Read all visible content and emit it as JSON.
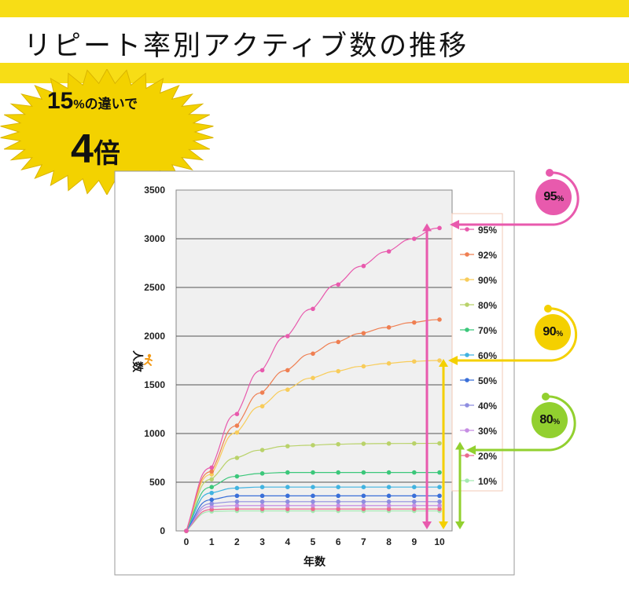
{
  "title": "リピート率別アクティブ数の推移",
  "callout": {
    "line1_number": "15",
    "line1_percent": "%",
    "line1_text": "の違いで",
    "line2_number": "4",
    "line2_text": "倍"
  },
  "badges": [
    {
      "value": "95",
      "unit": "%",
      "color": "#e85aad"
    },
    {
      "value": "90",
      "unit": "%",
      "color": "#f4d000"
    },
    {
      "value": "80",
      "unit": "%",
      "color": "#92d02f"
    }
  ],
  "chart_data": {
    "type": "line",
    "title": "",
    "xlabel": "年数",
    "ylabel": "人数",
    "x": [
      0,
      1,
      2,
      3,
      4,
      5,
      6,
      7,
      8,
      9,
      10
    ],
    "xlim": [
      0,
      10
    ],
    "ylim": [
      0,
      3500
    ],
    "yticks": [
      0,
      500,
      1000,
      1500,
      2000,
      2500,
      3000,
      3500
    ],
    "grid": true,
    "legend_position": "right",
    "series": [
      {
        "name": "95%",
        "color": "#e85aad",
        "values": [
          0,
          650,
          1200,
          1650,
          2000,
          2280,
          2530,
          2720,
          2870,
          3000,
          3110
        ]
      },
      {
        "name": "92%",
        "color": "#ef7f52",
        "values": [
          0,
          610,
          1080,
          1420,
          1650,
          1820,
          1940,
          2030,
          2090,
          2140,
          2170
        ]
      },
      {
        "name": "90%",
        "color": "#f8cc5a",
        "values": [
          0,
          580,
          1010,
          1280,
          1450,
          1570,
          1640,
          1690,
          1720,
          1740,
          1750
        ]
      },
      {
        "name": "80%",
        "color": "#b9d26a",
        "values": [
          0,
          530,
          750,
          830,
          870,
          880,
          890,
          895,
          897,
          898,
          899
        ]
      },
      {
        "name": "70%",
        "color": "#3bc77a",
        "values": [
          0,
          450,
          560,
          590,
          600,
          600,
          600,
          600,
          600,
          600,
          600
        ]
      },
      {
        "name": "60%",
        "color": "#41b3e0",
        "values": [
          0,
          390,
          440,
          450,
          450,
          450,
          450,
          450,
          450,
          450,
          450
        ]
      },
      {
        "name": "50%",
        "color": "#3a6fd8",
        "values": [
          0,
          320,
          360,
          360,
          360,
          360,
          360,
          360,
          360,
          360,
          360
        ]
      },
      {
        "name": "40%",
        "color": "#8f8ee0",
        "values": [
          0,
          280,
          300,
          300,
          300,
          300,
          300,
          300,
          300,
          300,
          300
        ]
      },
      {
        "name": "30%",
        "color": "#c68de3",
        "values": [
          0,
          250,
          260,
          260,
          260,
          260,
          260,
          260,
          260,
          260,
          260
        ]
      },
      {
        "name": "20%",
        "color": "#ea6b8d",
        "values": [
          0,
          220,
          225,
          225,
          225,
          225,
          225,
          225,
          225,
          225,
          225
        ]
      },
      {
        "name": "10%",
        "color": "#a3e9b0",
        "values": [
          0,
          200,
          205,
          205,
          205,
          205,
          205,
          205,
          205,
          205,
          205
        ]
      }
    ]
  }
}
